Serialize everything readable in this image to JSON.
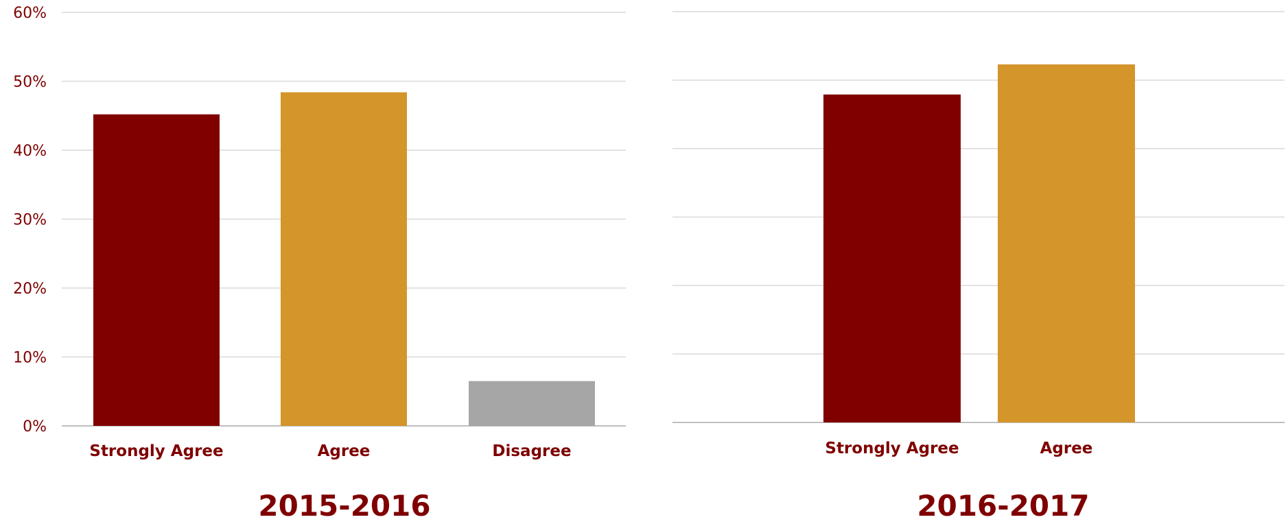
{
  "colors": {
    "strongly_agree": "#800000",
    "agree": "#d4952b",
    "disagree": "#a6a6a6",
    "text": "#7f0000",
    "grid": "#d9d9d9"
  },
  "chart_data": [
    {
      "type": "bar",
      "title": "2015-2016",
      "categories": [
        "Strongly Agree",
        "Agree",
        "Disagree"
      ],
      "values": [
        45.2,
        48.4,
        6.5
      ],
      "ylim": [
        0,
        60
      ],
      "yticks": [
        "0%",
        "10%",
        "20%",
        "30%",
        "40%",
        "50%",
        "60%"
      ],
      "show_y_tick_labels": true,
      "grid": true,
      "bar_colors": [
        "#800000",
        "#d4952b",
        "#a6a6a6"
      ]
    },
    {
      "type": "bar",
      "title": "2016-2017",
      "categories": [
        "Strongly Agree",
        "Agree"
      ],
      "values": [
        47.9,
        52.3
      ],
      "ylim": [
        0,
        60
      ],
      "show_y_tick_labels": false,
      "grid": true,
      "bar_colors": [
        "#800000",
        "#d4952b"
      ]
    }
  ]
}
